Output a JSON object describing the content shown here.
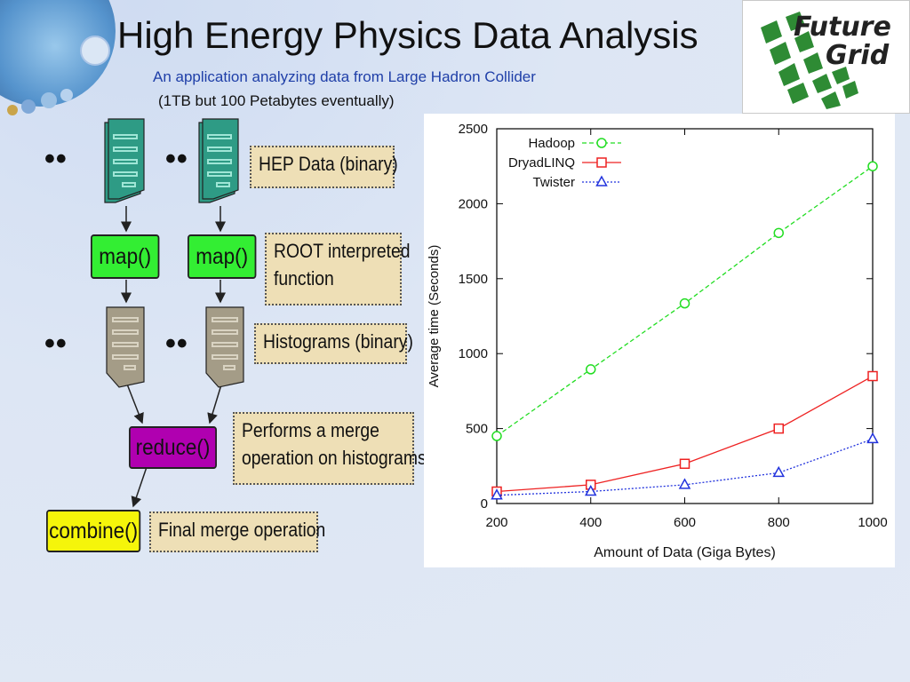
{
  "slide": {
    "title": "High Energy Physics Data Analysis",
    "subtitle": "An application analyzing data from Large Hadron Collider",
    "subtitle2": "(1TB but 100 Petabytes eventually)",
    "logo_line1": "Future",
    "logo_line2": "Grid"
  },
  "diagram": {
    "ellipsis": "••",
    "map_label": "map()",
    "reduce_label": "reduce()",
    "combine_label": "combine()",
    "notes": {
      "hep_data": "HEP Data (binary)",
      "root_line1": "ROOT interpreted",
      "root_line2": "function",
      "histograms": "Histograms (binary)",
      "merge_line1": "Performs a merge",
      "merge_line2": "operation on histograms",
      "final": "Final merge operation"
    },
    "colors": {
      "hep_doc": "#2e9b85",
      "histogram_doc": "#a49c87",
      "map": "#33ee33",
      "reduce": "#b000b0",
      "combine": "#f5f50a",
      "note": "#eedfb6"
    }
  },
  "chart_data": {
    "type": "line",
    "title": "",
    "xlabel": "Amount of Data (Giga Bytes)",
    "ylabel": "Average time (Seconds)",
    "x": [
      200,
      400,
      600,
      800,
      1000
    ],
    "xlim": [
      200,
      1000
    ],
    "ylim": [
      0,
      2500
    ],
    "xticks": [
      200,
      400,
      600,
      800,
      1000
    ],
    "yticks": [
      0,
      500,
      1000,
      1500,
      2000,
      2500
    ],
    "grid": false,
    "legend_position": "top-left",
    "series": [
      {
        "name": "Hadoop",
        "values": [
          450,
          895,
          1335,
          1805,
          2250
        ],
        "color": "#22dd22",
        "marker": "circle",
        "line": "dashed"
      },
      {
        "name": "DryadLINQ",
        "values": [
          80,
          125,
          265,
          500,
          850
        ],
        "color": "#ee2222",
        "marker": "square",
        "line": "solid"
      },
      {
        "name": "Twister",
        "values": [
          55,
          80,
          125,
          205,
          430
        ],
        "color": "#2233dd",
        "marker": "triangle",
        "line": "dotted"
      }
    ]
  }
}
